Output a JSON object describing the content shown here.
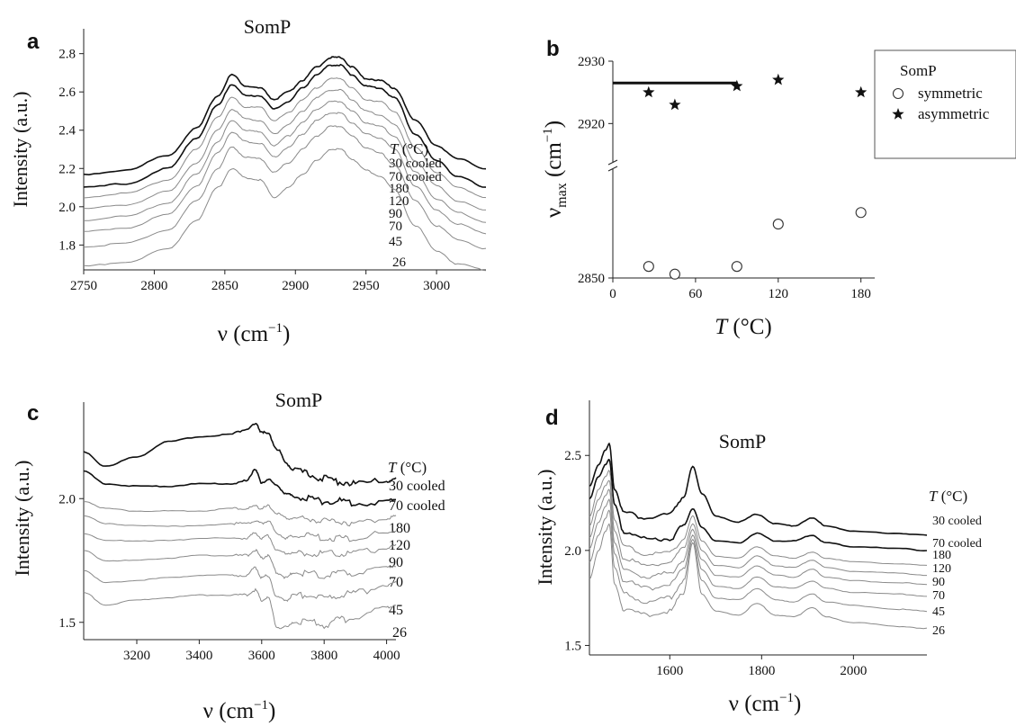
{
  "chart_data": [
    {
      "panel": "a",
      "type": "line",
      "title": "SomP",
      "xlabel_main": "ν (cm",
      "xlabel_exp": "−1",
      "xlabel_close": ")",
      "ylabel": "Intensity (a.u.)",
      "xlim": [
        2750,
        3035
      ],
      "ylim": [
        1.67,
        2.93
      ],
      "xticks": [
        "2750",
        "2800",
        "2850",
        "2900",
        "2950",
        "3000"
      ],
      "xtick_values": [
        2750,
        2800,
        2850,
        2900,
        2950,
        3000
      ],
      "yticks": [
        "1.8",
        "2.0",
        "2.2",
        "2.4",
        "2.6",
        "2.8"
      ],
      "ytick_values": [
        1.8,
        2.0,
        2.2,
        2.4,
        2.6,
        2.8
      ],
      "legend_title_var": "T",
      "legend_title_unit": " (°C)",
      "x": [
        2750,
        2780,
        2810,
        2830,
        2845,
        2855,
        2865,
        2875,
        2885,
        2895,
        2905,
        2915,
        2925,
        2932,
        2940,
        2950,
        2960,
        2970,
        2985,
        3000,
        3015,
        3035
      ],
      "series": [
        {
          "name": "30 cooled",
          "values": [
            2.17,
            2.19,
            2.27,
            2.41,
            2.58,
            2.69,
            2.63,
            2.62,
            2.56,
            2.6,
            2.66,
            2.73,
            2.78,
            2.78,
            2.73,
            2.67,
            2.66,
            2.62,
            2.45,
            2.32,
            2.25,
            2.2
          ]
        },
        {
          "name": "70 cooled",
          "values": [
            2.1,
            2.12,
            2.2,
            2.36,
            2.53,
            2.64,
            2.58,
            2.58,
            2.51,
            2.55,
            2.62,
            2.69,
            2.74,
            2.74,
            2.69,
            2.63,
            2.62,
            2.57,
            2.38,
            2.24,
            2.16,
            2.1
          ]
        },
        {
          "name": "180",
          "values": [
            2.05,
            2.07,
            2.14,
            2.3,
            2.47,
            2.57,
            2.52,
            2.52,
            2.45,
            2.49,
            2.56,
            2.62,
            2.67,
            2.67,
            2.62,
            2.56,
            2.55,
            2.5,
            2.31,
            2.18,
            2.1,
            2.05
          ]
        },
        {
          "name": "120",
          "values": [
            1.99,
            2.01,
            2.08,
            2.23,
            2.4,
            2.51,
            2.46,
            2.45,
            2.38,
            2.43,
            2.5,
            2.57,
            2.61,
            2.61,
            2.56,
            2.5,
            2.48,
            2.43,
            2.24,
            2.11,
            2.03,
            1.98
          ]
        },
        {
          "name": "90",
          "values": [
            1.93,
            1.95,
            2.02,
            2.17,
            2.34,
            2.45,
            2.4,
            2.39,
            2.32,
            2.37,
            2.44,
            2.51,
            2.55,
            2.55,
            2.5,
            2.44,
            2.42,
            2.37,
            2.18,
            2.04,
            1.97,
            1.92
          ]
        },
        {
          "name": "70",
          "values": [
            1.87,
            1.89,
            1.96,
            2.11,
            2.28,
            2.39,
            2.34,
            2.33,
            2.26,
            2.31,
            2.38,
            2.45,
            2.49,
            2.49,
            2.44,
            2.38,
            2.36,
            2.3,
            2.11,
            1.98,
            1.91,
            1.86
          ]
        },
        {
          "name": "45",
          "values": [
            1.79,
            1.81,
            1.88,
            2.03,
            2.2,
            2.31,
            2.26,
            2.25,
            2.18,
            2.23,
            2.3,
            2.37,
            2.42,
            2.42,
            2.37,
            2.31,
            2.28,
            2.22,
            2.03,
            1.9,
            1.83,
            1.78
          ]
        },
        {
          "name": "26",
          "values": [
            1.69,
            1.71,
            1.78,
            1.93,
            2.1,
            2.2,
            2.15,
            2.14,
            2.05,
            2.1,
            2.17,
            2.24,
            2.3,
            2.3,
            2.25,
            2.19,
            2.16,
            2.09,
            1.9,
            1.77,
            1.7,
            1.67
          ]
        }
      ]
    },
    {
      "panel": "b",
      "type": "scatter",
      "xlabel_var": "T",
      "xlabel_unit": " (°C)",
      "ylabel_main": "ν",
      "ylabel_sub": "max",
      "ylabel_unit": " (cm",
      "ylabel_exp": "−1",
      "ylabel_close": ")",
      "xlim": [
        0,
        190
      ],
      "upper_ylim": [
        2915,
        2930
      ],
      "lower_ylim": [
        2850,
        2875
      ],
      "xticks": [
        "0",
        "60",
        "120",
        "180"
      ],
      "xtick_values": [
        0,
        60,
        120,
        180
      ],
      "yticks": [
        "2850",
        "2920",
        "2930"
      ],
      "ytick_values": [
        2850,
        2920,
        2930
      ],
      "axis_break": true,
      "horizontal_line": {
        "y": 2926.5,
        "x_from": 0,
        "x_to": 90
      },
      "legend": {
        "title": "SomP",
        "placement": "top-right"
      },
      "series": [
        {
          "name": "symmetric",
          "marker": "circle",
          "x": [
            26,
            45,
            90,
            120,
            180
          ],
          "y": [
            2853,
            2851,
            2853,
            2864,
            2867
          ]
        },
        {
          "name": "asymmetric",
          "marker": "star",
          "x": [
            26,
            45,
            90,
            120,
            180
          ],
          "y": [
            2925,
            2923,
            2926,
            2927,
            2925
          ]
        }
      ]
    },
    {
      "panel": "c",
      "type": "line",
      "title": "SomP",
      "xlabel_main": "ν (cm",
      "xlabel_exp": "−1",
      "xlabel_close": ")",
      "ylabel": "Intensity (a.u.)",
      "xlim": [
        3030,
        4030
      ],
      "ylim": [
        1.43,
        2.39
      ],
      "xticks": [
        "3200",
        "3400",
        "3600",
        "3800",
        "4000"
      ],
      "xtick_values": [
        3200,
        3400,
        3600,
        3800,
        4000
      ],
      "yticks": [
        "1.5",
        "2.0"
      ],
      "ytick_values": [
        1.5,
        2.0
      ],
      "legend_title_var": "T",
      "legend_title_unit": " (°C)",
      "x": [
        3030,
        3100,
        3200,
        3300,
        3400,
        3500,
        3550,
        3580,
        3600,
        3620,
        3650,
        3680,
        3700,
        3750,
        3800,
        3850,
        3900,
        4000,
        4030
      ],
      "series": [
        {
          "name": "30 cooled",
          "values": [
            2.19,
            2.13,
            2.17,
            2.23,
            2.25,
            2.26,
            2.28,
            2.3,
            2.27,
            2.26,
            2.2,
            2.14,
            2.12,
            2.1,
            2.08,
            2.07,
            2.06,
            2.07,
            2.08
          ]
        },
        {
          "name": "70 cooled",
          "values": [
            2.11,
            2.06,
            2.05,
            2.05,
            2.06,
            2.06,
            2.07,
            2.12,
            2.06,
            2.08,
            2.05,
            2.02,
            2.01,
            2.0,
            1.99,
            1.99,
            1.98,
            1.99,
            2.0
          ]
        },
        {
          "name": "180",
          "values": [
            1.99,
            1.96,
            1.95,
            1.95,
            1.95,
            1.96,
            1.96,
            1.97,
            1.96,
            1.97,
            1.94,
            1.92,
            1.92,
            1.92,
            1.91,
            1.91,
            1.9,
            1.92,
            1.93
          ]
        },
        {
          "name": "120",
          "values": [
            1.93,
            1.9,
            1.89,
            1.89,
            1.89,
            1.9,
            1.9,
            1.91,
            1.9,
            1.91,
            1.86,
            1.84,
            1.85,
            1.85,
            1.84,
            1.84,
            1.84,
            1.86,
            1.87
          ]
        },
        {
          "name": "90",
          "values": [
            1.86,
            1.83,
            1.83,
            1.83,
            1.84,
            1.84,
            1.84,
            1.86,
            1.84,
            1.85,
            1.79,
            1.78,
            1.78,
            1.78,
            1.78,
            1.78,
            1.78,
            1.8,
            1.81
          ]
        },
        {
          "name": "70",
          "values": [
            1.79,
            1.75,
            1.75,
            1.76,
            1.77,
            1.77,
            1.77,
            1.79,
            1.76,
            1.77,
            1.7,
            1.68,
            1.7,
            1.7,
            1.69,
            1.7,
            1.7,
            1.72,
            1.73
          ]
        },
        {
          "name": "45",
          "values": [
            1.71,
            1.66,
            1.67,
            1.68,
            1.69,
            1.69,
            1.69,
            1.72,
            1.68,
            1.69,
            1.6,
            1.59,
            1.61,
            1.61,
            1.6,
            1.61,
            1.62,
            1.65,
            1.66
          ]
        },
        {
          "name": "26",
          "values": [
            1.62,
            1.57,
            1.59,
            1.6,
            1.61,
            1.61,
            1.61,
            1.63,
            1.59,
            1.6,
            1.48,
            1.48,
            1.5,
            1.5,
            1.49,
            1.51,
            1.52,
            1.56,
            1.57
          ]
        }
      ]
    },
    {
      "panel": "d",
      "type": "line",
      "title": "SomP",
      "xlabel_main": "ν (cm",
      "xlabel_exp": "−1",
      "xlabel_close": ")",
      "ylabel": "Intensity (a.u.)",
      "xlim": [
        1425,
        2160
      ],
      "ylim": [
        1.45,
        2.79
      ],
      "xticks": [
        "1600",
        "1800",
        "2000"
      ],
      "xtick_values": [
        1600,
        1800,
        2000
      ],
      "yticks": [
        "1.5",
        "2.0",
        "2.5"
      ],
      "ytick_values": [
        1.5,
        2.0,
        2.5
      ],
      "legend_title_var": "T",
      "legend_title_unit": " (°C)",
      "x": [
        1425,
        1445,
        1460,
        1468,
        1480,
        1500,
        1550,
        1600,
        1630,
        1650,
        1670,
        1700,
        1750,
        1790,
        1830,
        1870,
        1910,
        1940,
        2000,
        2100,
        2160
      ],
      "series": [
        {
          "name": "30 cooled",
          "values": [
            2.34,
            2.45,
            2.53,
            2.56,
            2.32,
            2.2,
            2.17,
            2.19,
            2.28,
            2.44,
            2.3,
            2.18,
            2.15,
            2.19,
            2.14,
            2.13,
            2.17,
            2.13,
            2.1,
            2.09,
            2.08
          ]
        },
        {
          "name": "70 cooled",
          "values": [
            2.27,
            2.39,
            2.45,
            2.48,
            2.24,
            2.1,
            2.06,
            2.06,
            2.13,
            2.22,
            2.12,
            2.05,
            2.04,
            2.09,
            2.05,
            2.05,
            2.08,
            2.04,
            2.02,
            2.01,
            2.0
          ]
        },
        {
          "name": "180",
          "values": [
            2.18,
            2.32,
            2.39,
            2.42,
            2.16,
            2.02,
            1.98,
            1.99,
            2.06,
            2.18,
            2.05,
            1.97,
            1.96,
            2.02,
            1.97,
            1.96,
            1.99,
            1.96,
            1.94,
            1.93,
            1.92
          ]
        },
        {
          "name": "120",
          "values": [
            2.13,
            2.27,
            2.34,
            2.37,
            2.1,
            1.96,
            1.92,
            1.94,
            2.01,
            2.14,
            2.0,
            1.92,
            1.91,
            1.97,
            1.92,
            1.91,
            1.95,
            1.91,
            1.89,
            1.88,
            1.87
          ]
        },
        {
          "name": "90",
          "values": [
            2.07,
            2.21,
            2.29,
            2.32,
            2.04,
            1.9,
            1.86,
            1.88,
            1.95,
            2.11,
            1.95,
            1.87,
            1.86,
            1.92,
            1.87,
            1.86,
            1.9,
            1.86,
            1.84,
            1.83,
            1.82
          ]
        },
        {
          "name": "70",
          "values": [
            2.01,
            2.15,
            2.23,
            2.27,
            1.98,
            1.84,
            1.8,
            1.82,
            1.9,
            2.08,
            1.9,
            1.81,
            1.8,
            1.86,
            1.81,
            1.8,
            1.84,
            1.8,
            1.78,
            1.77,
            1.76
          ]
        },
        {
          "name": "45",
          "values": [
            1.94,
            2.08,
            2.17,
            2.21,
            1.91,
            1.77,
            1.73,
            1.75,
            1.84,
            2.06,
            1.84,
            1.75,
            1.74,
            1.8,
            1.74,
            1.73,
            1.77,
            1.73,
            1.71,
            1.69,
            1.68
          ]
        },
        {
          "name": "26",
          "values": [
            1.85,
            2.0,
            2.1,
            2.14,
            1.82,
            1.69,
            1.66,
            1.68,
            1.78,
            2.04,
            1.77,
            1.68,
            1.66,
            1.72,
            1.66,
            1.65,
            1.7,
            1.65,
            1.62,
            1.6,
            1.59
          ]
        }
      ]
    }
  ]
}
